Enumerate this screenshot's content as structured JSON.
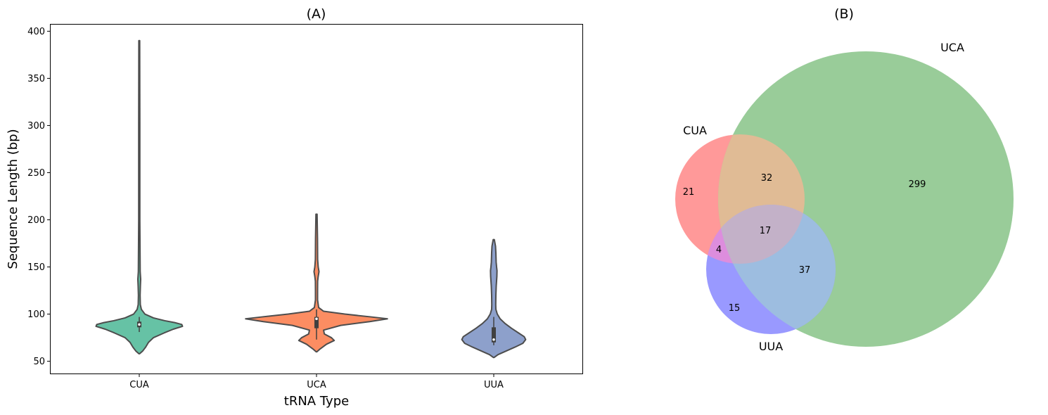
{
  "chart_data": [
    {
      "type": "violin",
      "title": "(A)",
      "xlabel": "tRNA Type",
      "ylabel": "Sequence Length (bp)",
      "categories": [
        "CUA",
        "UCA",
        "UUA"
      ],
      "ylim": [
        37,
        407
      ],
      "yticks": [
        50,
        100,
        150,
        200,
        250,
        300,
        350,
        400
      ],
      "grid": false,
      "colors": [
        "#66c2a5",
        "#fc8d62",
        "#8da0cb"
      ],
      "violins": [
        {
          "category": "CUA",
          "min": 58,
          "max": 390,
          "box": {
            "q1": 86,
            "median": 89,
            "q3": 92
          },
          "whisker": [
            81,
            97
          ],
          "profile": [
            [
              58,
              0.5
            ],
            [
              61,
              5
            ],
            [
              65,
              9
            ],
            [
              70,
              13
            ],
            [
              75,
              20
            ],
            [
              80,
              35
            ],
            [
              84,
              48
            ],
            [
              87,
              61
            ],
            [
              89,
              60
            ],
            [
              91,
              50
            ],
            [
              93,
              36
            ],
            [
              96,
              20
            ],
            [
              100,
              8
            ],
            [
              105,
              3
            ],
            [
              110,
              1.5
            ],
            [
              120,
              1.2
            ],
            [
              130,
              1.6
            ],
            [
              137,
              2
            ],
            [
              145,
              1.3
            ],
            [
              200,
              0.8
            ],
            [
              300,
              0.8
            ],
            [
              390,
              0.6
            ]
          ]
        },
        {
          "category": "UCA",
          "min": 60,
          "max": 206,
          "box": {
            "q1": 85,
            "median": 95,
            "q3": 97
          },
          "whisker": [
            73,
            105
          ],
          "profile": [
            [
              60,
              0.5
            ],
            [
              63,
              5
            ],
            [
              68,
              14
            ],
            [
              72,
              25
            ],
            [
              75,
              21
            ],
            [
              79,
              11
            ],
            [
              83,
              10
            ],
            [
              88,
              34
            ],
            [
              92,
              75
            ],
            [
              95,
              100
            ],
            [
              97,
              77
            ],
            [
              100,
              40
            ],
            [
              103,
              10
            ],
            [
              107,
              3
            ],
            [
              115,
              1.5
            ],
            [
              125,
              1.5
            ],
            [
              135,
              1.6
            ],
            [
              140,
              2.4
            ],
            [
              145,
              3.5
            ],
            [
              150,
              2.4
            ],
            [
              158,
              1.6
            ],
            [
              180,
              1.4
            ],
            [
              206,
              0.8
            ]
          ]
        },
        {
          "category": "UUA",
          "min": 54,
          "max": 179,
          "box": {
            "q1": 70,
            "median": 73,
            "q3": 86
          },
          "whisker": [
            67,
            97
          ],
          "profile": [
            [
              54,
              0.5
            ],
            [
              57,
              6
            ],
            [
              61,
              18
            ],
            [
              65,
              30
            ],
            [
              69,
              41
            ],
            [
              73,
              45
            ],
            [
              76,
              43
            ],
            [
              80,
              35
            ],
            [
              85,
              25
            ],
            [
              90,
              16
            ],
            [
              95,
              9
            ],
            [
              100,
              5
            ],
            [
              105,
              3
            ],
            [
              110,
              2.8
            ],
            [
              120,
              3
            ],
            [
              130,
              3.5
            ],
            [
              140,
              4.4
            ],
            [
              146,
              4.6
            ],
            [
              150,
              4
            ],
            [
              155,
              3.4
            ],
            [
              165,
              3
            ],
            [
              172,
              2.5
            ],
            [
              179,
              0.8
            ]
          ]
        }
      ]
    },
    {
      "type": "venn",
      "title": "(B)",
      "sets": [
        {
          "label": "CUA",
          "color": "#ff6666"
        },
        {
          "label": "UCA",
          "color": "#66b366"
        },
        {
          "label": "UUA",
          "color": "#6666ff"
        }
      ],
      "regions": [
        {
          "sets": [
            "CUA"
          ],
          "value": 21
        },
        {
          "sets": [
            "CUA",
            "UCA"
          ],
          "value": 32
        },
        {
          "sets": [
            "UCA"
          ],
          "value": 299
        },
        {
          "sets": [
            "CUA",
            "UCA",
            "UUA"
          ],
          "value": 17
        },
        {
          "sets": [
            "CUA",
            "UUA"
          ],
          "value": 4
        },
        {
          "sets": [
            "UCA",
            "UUA"
          ],
          "value": 37
        },
        {
          "sets": [
            "UUA"
          ],
          "value": 15
        }
      ]
    }
  ]
}
